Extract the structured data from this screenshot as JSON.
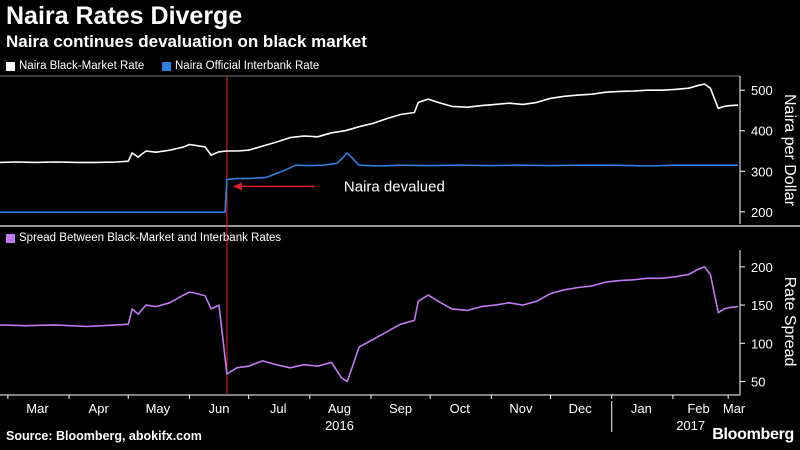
{
  "header": {
    "title": "Naira Rates Diverge",
    "subtitle": "Naira continues devaluation on black market"
  },
  "footer": {
    "source": "Source: Bloomberg, abokifx.com",
    "brand": "Bloomberg"
  },
  "colors": {
    "background": "#000000",
    "black_market": "#ffffff",
    "interbank": "#2f7fe0",
    "spread": "#c17af0",
    "annotation": "#e0202a"
  },
  "chart_data": [
    {
      "type": "line",
      "legend_position": "top-left",
      "ylabel": "Naira per Dollar",
      "ylim": [
        170,
        535
      ],
      "yticks": [
        200,
        300,
        400,
        500
      ],
      "grid": false,
      "annotation": {
        "text": "Naira devalued",
        "date": "2016-06-20"
      },
      "series": [
        {
          "name": "Naira Black-Market Rate",
          "color": "#ffffff",
          "points": [
            [
              "2016-02-26",
              322
            ],
            [
              "2016-03-05",
              323
            ],
            [
              "2016-03-15",
              322
            ],
            [
              "2016-03-25",
              323
            ],
            [
              "2016-04-05",
              322
            ],
            [
              "2016-04-15",
              322
            ],
            [
              "2016-04-25",
              323
            ],
            [
              "2016-05-01",
              325
            ],
            [
              "2016-05-03",
              345
            ],
            [
              "2016-05-06",
              335
            ],
            [
              "2016-05-10",
              350
            ],
            [
              "2016-05-15",
              347
            ],
            [
              "2016-05-22",
              352
            ],
            [
              "2016-05-29",
              360
            ],
            [
              "2016-06-01",
              366
            ],
            [
              "2016-06-05",
              363
            ],
            [
              "2016-06-09",
              360
            ],
            [
              "2016-06-12",
              340
            ],
            [
              "2016-06-16",
              348
            ],
            [
              "2016-06-20",
              350
            ],
            [
              "2016-06-25",
              350
            ],
            [
              "2016-07-01",
              352
            ],
            [
              "2016-07-08",
              362
            ],
            [
              "2016-07-15",
              372
            ],
            [
              "2016-07-22",
              383
            ],
            [
              "2016-07-29",
              387
            ],
            [
              "2016-08-05",
              385
            ],
            [
              "2016-08-12",
              395
            ],
            [
              "2016-08-19",
              400
            ],
            [
              "2016-08-26",
              410
            ],
            [
              "2016-09-02",
              418
            ],
            [
              "2016-09-09",
              430
            ],
            [
              "2016-09-16",
              440
            ],
            [
              "2016-09-23",
              445
            ],
            [
              "2016-09-25",
              470
            ],
            [
              "2016-09-30",
              478
            ],
            [
              "2016-10-05",
              470
            ],
            [
              "2016-10-12",
              460
            ],
            [
              "2016-10-20",
              458
            ],
            [
              "2016-10-27",
              462
            ],
            [
              "2016-11-03",
              465
            ],
            [
              "2016-11-10",
              468
            ],
            [
              "2016-11-17",
              465
            ],
            [
              "2016-11-24",
              470
            ],
            [
              "2016-12-01",
              480
            ],
            [
              "2016-12-08",
              485
            ],
            [
              "2016-12-15",
              488
            ],
            [
              "2016-12-22",
              490
            ],
            [
              "2016-12-29",
              495
            ],
            [
              "2017-01-05",
              497
            ],
            [
              "2017-01-12",
              498
            ],
            [
              "2017-01-19",
              500
            ],
            [
              "2017-01-26",
              500
            ],
            [
              "2017-02-02",
              502
            ],
            [
              "2017-02-09",
              505
            ],
            [
              "2017-02-14",
              512
            ],
            [
              "2017-02-17",
              515
            ],
            [
              "2017-02-20",
              505
            ],
            [
              "2017-02-22",
              480
            ],
            [
              "2017-02-24",
              455
            ],
            [
              "2017-02-27",
              460
            ],
            [
              "2017-03-02",
              462
            ],
            [
              "2017-03-06",
              463
            ]
          ]
        },
        {
          "name": "Naira Official Interbank Rate",
          "color": "#2f7fe0",
          "points": [
            [
              "2016-02-26",
              199
            ],
            [
              "2016-03-15",
              199
            ],
            [
              "2016-04-15",
              199
            ],
            [
              "2016-05-15",
              199
            ],
            [
              "2016-06-19",
              199
            ],
            [
              "2016-06-20",
              280
            ],
            [
              "2016-06-25",
              282
            ],
            [
              "2016-07-01",
              282
            ],
            [
              "2016-07-10",
              285
            ],
            [
              "2016-07-18",
              300
            ],
            [
              "2016-07-25",
              315
            ],
            [
              "2016-08-01",
              314
            ],
            [
              "2016-08-08",
              315
            ],
            [
              "2016-08-15",
              320
            ],
            [
              "2016-08-20",
              345
            ],
            [
              "2016-08-23",
              330
            ],
            [
              "2016-08-26",
              315
            ],
            [
              "2016-09-05",
              313
            ],
            [
              "2016-09-15",
              315
            ],
            [
              "2016-10-01",
              314
            ],
            [
              "2016-10-15",
              315
            ],
            [
              "2016-11-01",
              314
            ],
            [
              "2016-11-15",
              315
            ],
            [
              "2016-12-01",
              314
            ],
            [
              "2016-12-15",
              315
            ],
            [
              "2017-01-01",
              315
            ],
            [
              "2017-01-20",
              313
            ],
            [
              "2017-02-01",
              315
            ],
            [
              "2017-02-15",
              315
            ],
            [
              "2017-03-06",
              315
            ]
          ]
        }
      ]
    },
    {
      "type": "line",
      "legend_position": "top-left",
      "ylabel": "Rate Spread",
      "ylim": [
        35,
        222
      ],
      "yticks": [
        50,
        100,
        150,
        200
      ],
      "grid": false,
      "series": [
        {
          "name": "Spread Between Black-Market and Interbank Rates",
          "color": "#c17af0",
          "points": [
            [
              "2016-02-26",
              124
            ],
            [
              "2016-03-10",
              123
            ],
            [
              "2016-03-25",
              124
            ],
            [
              "2016-04-10",
              122
            ],
            [
              "2016-04-25",
              124
            ],
            [
              "2016-05-01",
              125
            ],
            [
              "2016-05-03",
              145
            ],
            [
              "2016-05-06",
              138
            ],
            [
              "2016-05-10",
              150
            ],
            [
              "2016-05-15",
              148
            ],
            [
              "2016-05-22",
              153
            ],
            [
              "2016-05-29",
              163
            ],
            [
              "2016-06-01",
              167
            ],
            [
              "2016-06-05",
              165
            ],
            [
              "2016-06-09",
              162
            ],
            [
              "2016-06-12",
              145
            ],
            [
              "2016-06-16",
              150
            ],
            [
              "2016-06-20",
              60
            ],
            [
              "2016-06-25",
              68
            ],
            [
              "2016-07-01",
              70
            ],
            [
              "2016-07-08",
              77
            ],
            [
              "2016-07-15",
              72
            ],
            [
              "2016-07-22",
              68
            ],
            [
              "2016-07-29",
              72
            ],
            [
              "2016-08-05",
              70
            ],
            [
              "2016-08-12",
              75
            ],
            [
              "2016-08-17",
              55
            ],
            [
              "2016-08-20",
              50
            ],
            [
              "2016-08-26",
              95
            ],
            [
              "2016-09-02",
              105
            ],
            [
              "2016-09-09",
              115
            ],
            [
              "2016-09-16",
              125
            ],
            [
              "2016-09-23",
              130
            ],
            [
              "2016-09-25",
              155
            ],
            [
              "2016-09-30",
              163
            ],
            [
              "2016-10-05",
              155
            ],
            [
              "2016-10-12",
              145
            ],
            [
              "2016-10-20",
              143
            ],
            [
              "2016-10-27",
              148
            ],
            [
              "2016-11-03",
              150
            ],
            [
              "2016-11-10",
              153
            ],
            [
              "2016-11-17",
              150
            ],
            [
              "2016-11-24",
              155
            ],
            [
              "2016-12-01",
              165
            ],
            [
              "2016-12-08",
              170
            ],
            [
              "2016-12-15",
              173
            ],
            [
              "2016-12-22",
              175
            ],
            [
              "2016-12-29",
              180
            ],
            [
              "2017-01-05",
              182
            ],
            [
              "2017-01-12",
              183
            ],
            [
              "2017-01-19",
              185
            ],
            [
              "2017-01-26",
              185
            ],
            [
              "2017-02-02",
              187
            ],
            [
              "2017-02-09",
              190
            ],
            [
              "2017-02-14",
              197
            ],
            [
              "2017-02-17",
              200
            ],
            [
              "2017-02-20",
              190
            ],
            [
              "2017-02-22",
              165
            ],
            [
              "2017-02-24",
              140
            ],
            [
              "2017-02-27",
              145
            ],
            [
              "2017-03-02",
              147
            ],
            [
              "2017-03-06",
              148
            ]
          ]
        }
      ]
    }
  ],
  "x_axis": {
    "range": [
      "2016-02-26",
      "2017-03-07"
    ],
    "months": [
      {
        "label": "Mar",
        "date": "2016-03-16"
      },
      {
        "label": "Apr",
        "date": "2016-04-16"
      },
      {
        "label": "May",
        "date": "2016-05-16"
      },
      {
        "label": "Jun",
        "date": "2016-06-16"
      },
      {
        "label": "Jul",
        "date": "2016-07-16"
      },
      {
        "label": "Aug",
        "date": "2016-08-16"
      },
      {
        "label": "Sep",
        "date": "2016-09-16"
      },
      {
        "label": "Oct",
        "date": "2016-10-16"
      },
      {
        "label": "Nov",
        "date": "2016-11-16"
      },
      {
        "label": "Dec",
        "date": "2016-12-16"
      },
      {
        "label": "Jan",
        "date": "2017-01-16"
      },
      {
        "label": "Feb",
        "date": "2017-02-14"
      },
      {
        "label": "Mar",
        "date": "2017-03-04"
      }
    ],
    "years": [
      {
        "label": "2016",
        "date": "2016-08-16"
      },
      {
        "label": "2017",
        "date": "2017-02-10"
      }
    ]
  }
}
